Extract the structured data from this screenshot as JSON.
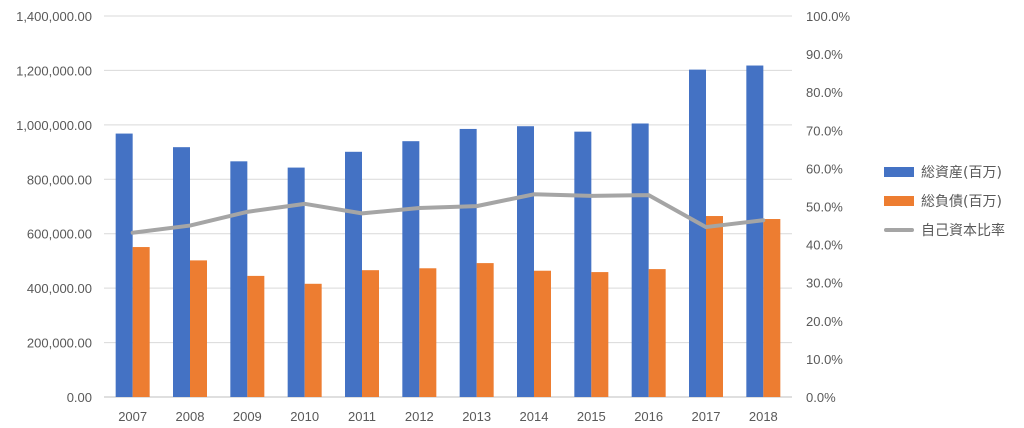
{
  "chart_data": {
    "type": "bar",
    "categories": [
      "2007",
      "2008",
      "2009",
      "2010",
      "2011",
      "2012",
      "2013",
      "2014",
      "2015",
      "2016",
      "2017",
      "2018"
    ],
    "series": [
      {
        "name": "総資産(百万)",
        "type": "bar",
        "axis": "left",
        "values": [
          968000,
          918000,
          866000,
          843000,
          901000,
          940000,
          985000,
          995000,
          975000,
          1005000,
          1203000,
          1218000
        ],
        "color": "#4472C4"
      },
      {
        "name": "総負債(百万)",
        "type": "bar",
        "axis": "left",
        "values": [
          551000,
          502000,
          445000,
          416000,
          466000,
          473000,
          492000,
          464000,
          459000,
          470000,
          665000,
          654000
        ],
        "color": "#ED7D31"
      },
      {
        "name": "自己資本比率",
        "type": "line",
        "axis": "right",
        "values": [
          0.431,
          0.45,
          0.486,
          0.507,
          0.482,
          0.496,
          0.501,
          0.532,
          0.528,
          0.53,
          0.446,
          0.464
        ],
        "color": "#A5A5A5"
      }
    ],
    "y_left": {
      "range": [
        0,
        1400000
      ],
      "ticks": [
        "0.00",
        "200,000.00",
        "400,000.00",
        "600,000.00",
        "800,000.00",
        "1,000,000.00",
        "1,200,000.00",
        "1,400,000.00"
      ]
    },
    "y_right": {
      "range": [
        0,
        1.0
      ],
      "ticks": [
        "0.0%",
        "10.0%",
        "20.0%",
        "30.0%",
        "40.0%",
        "50.0%",
        "60.0%",
        "70.0%",
        "80.0%",
        "90.0%",
        "100.0%"
      ]
    },
    "grid": true,
    "legend_position": "right"
  }
}
